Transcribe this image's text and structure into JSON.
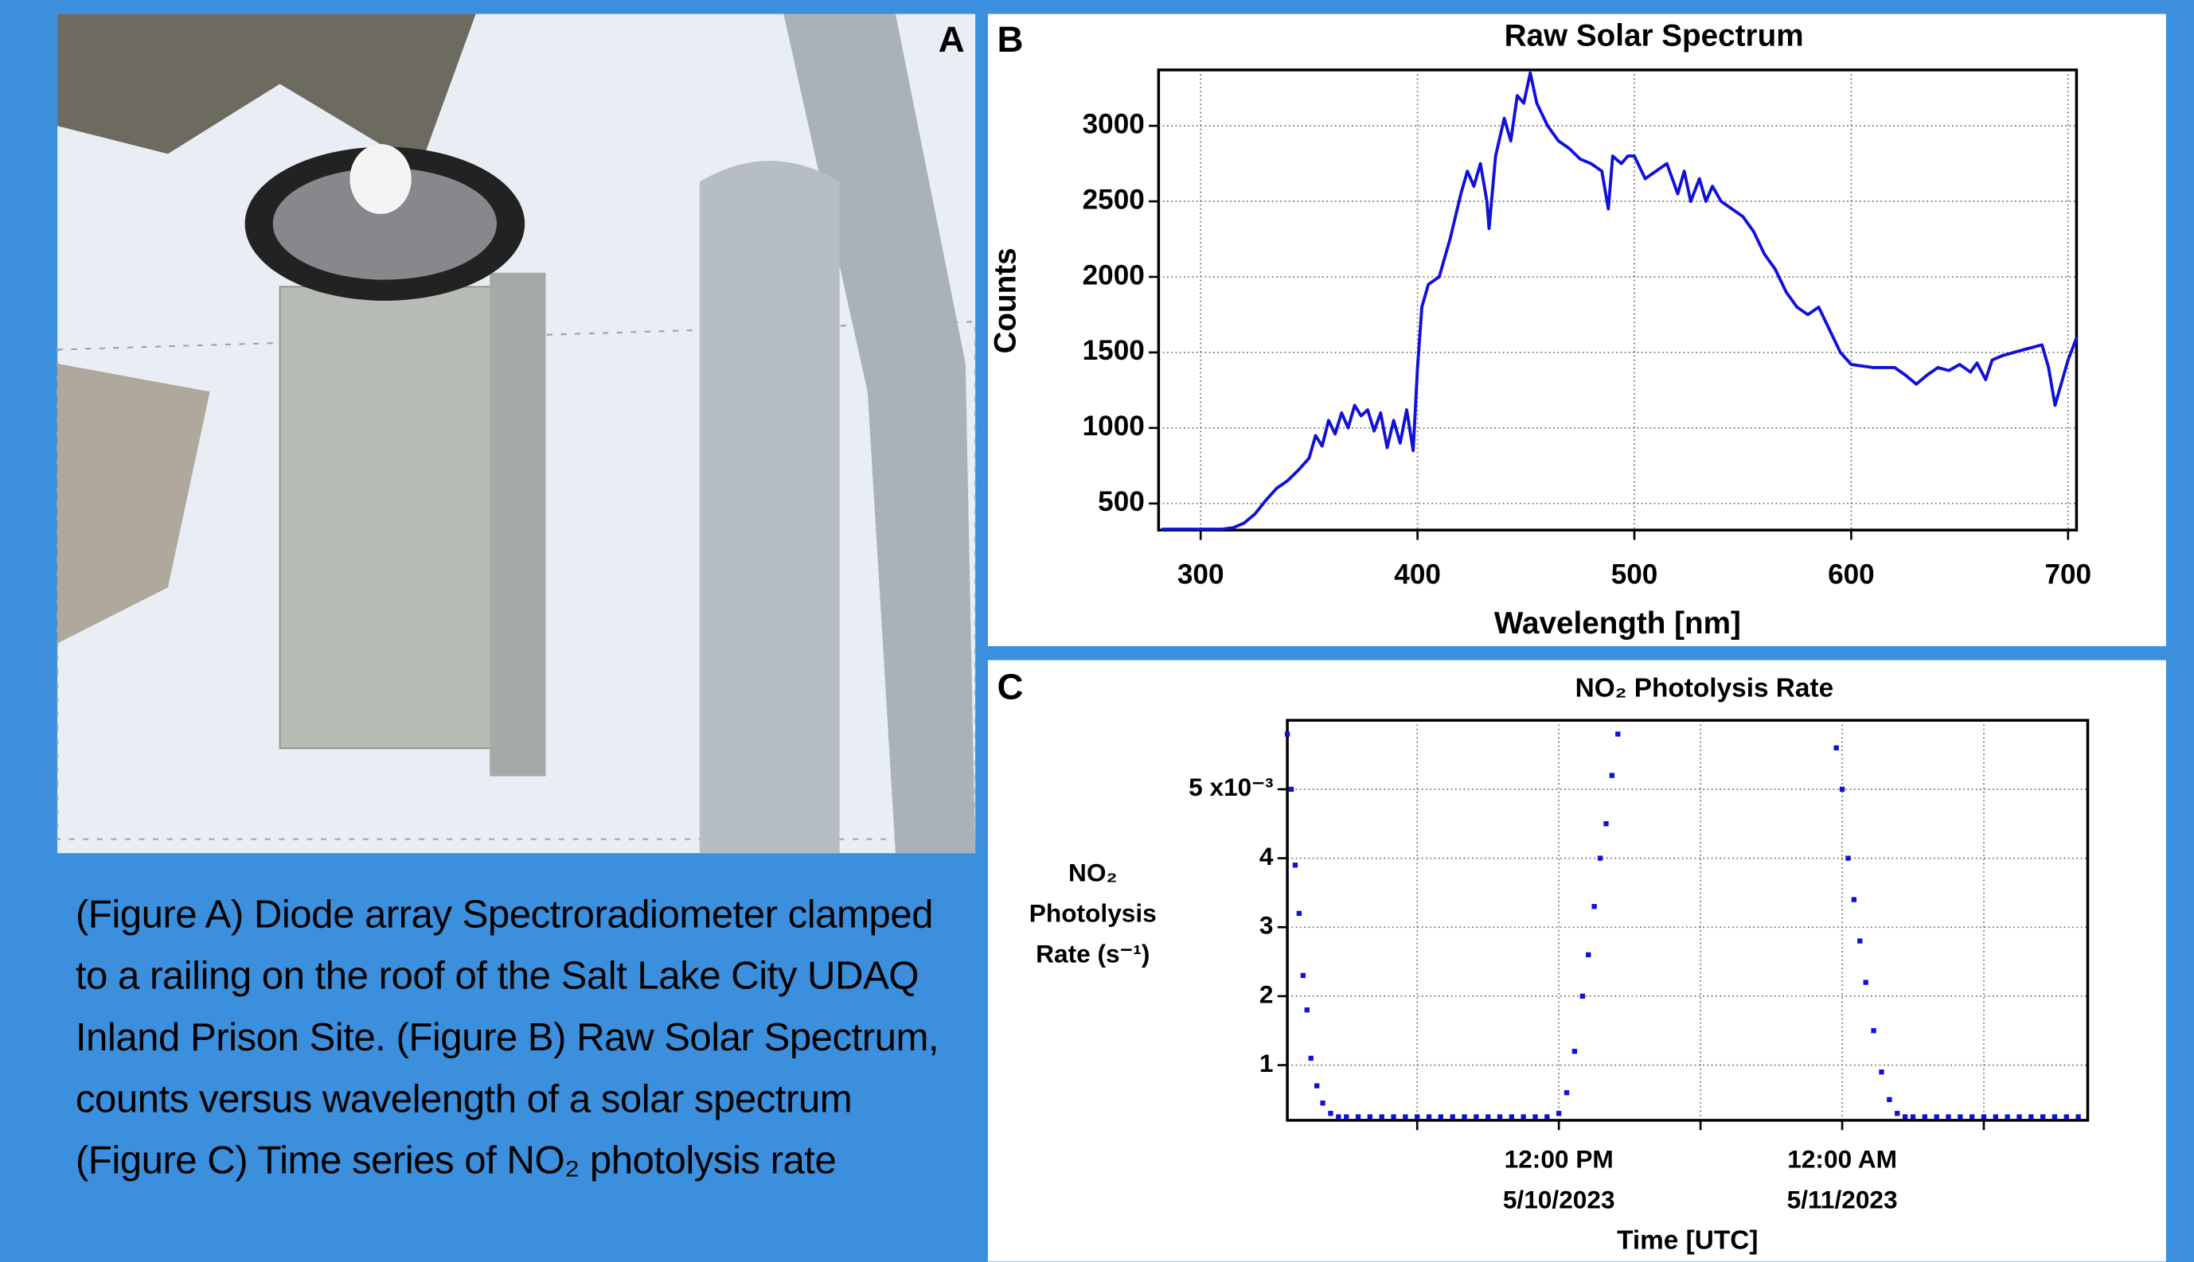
{
  "panel_labels": [
    "A",
    "B",
    "C"
  ],
  "caption": "(Figure A) Diode array Spectroradiometer clamped to a railing on the roof of the Salt Lake City UDAQ Inland Prison Site. (Figure B) Raw Solar Spectrum, counts versus wavelength of a solar spectrum (Figure C) Time series of NO₂ photolysis rate",
  "chart_data": [
    {
      "type": "line",
      "title": "Raw Solar Spectrum",
      "x_label": "Wavelength [nm]",
      "y_label": "Counts",
      "color": "#1010d8",
      "grid": true,
      "xlim": [
        280.6,
        703.9
      ],
      "ylim": [
        324,
        3370
      ],
      "xticks": [
        300,
        400,
        500,
        600,
        700
      ],
      "yticks": [
        500,
        1000,
        1500,
        2000,
        2500,
        3000
      ],
      "x": [
        282,
        290,
        300,
        310,
        315,
        320,
        325,
        330,
        335,
        340,
        345,
        350,
        353,
        356,
        359,
        362,
        365,
        368,
        371,
        374,
        377,
        380,
        383,
        386,
        389,
        392,
        395,
        398,
        400,
        402,
        405,
        410,
        415,
        420,
        423,
        426,
        429,
        432,
        433,
        436,
        440,
        443,
        446,
        449,
        452,
        455,
        460,
        465,
        470,
        475,
        480,
        485,
        488,
        490,
        494,
        497,
        500,
        505,
        510,
        515,
        520,
        523,
        526,
        530,
        533,
        536,
        540,
        545,
        550,
        555,
        560,
        565,
        570,
        575,
        580,
        585,
        590,
        595,
        600,
        610,
        620,
        625,
        630,
        635,
        640,
        645,
        650,
        655,
        658,
        662,
        665,
        670,
        680,
        688,
        691,
        694,
        697,
        700,
        704
      ],
      "values": [
        330,
        330,
        330,
        330,
        340,
        370,
        430,
        520,
        600,
        650,
        720,
        800,
        950,
        880,
        1050,
        960,
        1100,
        1000,
        1150,
        1080,
        1120,
        980,
        1100,
        870,
        1050,
        900,
        1120,
        850,
        1400,
        1800,
        1950,
        2000,
        2250,
        2550,
        2700,
        2600,
        2750,
        2500,
        2320,
        2800,
        3050,
        2900,
        3200,
        3150,
        3350,
        3150,
        3000,
        2900,
        2850,
        2780,
        2750,
        2700,
        2450,
        2800,
        2750,
        2800,
        2800,
        2650,
        2700,
        2750,
        2550,
        2700,
        2500,
        2650,
        2500,
        2600,
        2500,
        2450,
        2400,
        2300,
        2150,
        2050,
        1900,
        1800,
        1750,
        1800,
        1650,
        1500,
        1420,
        1400,
        1400,
        1350,
        1290,
        1350,
        1400,
        1380,
        1420,
        1370,
        1430,
        1320,
        1450,
        1480,
        1520,
        1550,
        1400,
        1150,
        1300,
        1450,
        1600
      ]
    },
    {
      "type": "scatter",
      "title": "NO₂ Photolysis Rate",
      "x_label": "Time [UTC]",
      "y_label": "NO₂\nPhotolysis\nRate (s⁻¹)",
      "color": "#1010d8",
      "grid": true,
      "xlim": [
        "2023-05-10T00:30",
        "2023-05-11T10:24"
      ],
      "ylim": [
        0.2,
        6.0
      ],
      "xticks": [
        {
          "value": "2023-05-10T06:00",
          "label": null
        },
        {
          "value": "2023-05-10T12:00",
          "label": "12:00 PM\n5/10/2023"
        },
        {
          "value": "2023-05-10T18:00",
          "label": null
        },
        {
          "value": "2023-05-11T00:00",
          "label": "12:00 AM\n5/11/2023"
        },
        {
          "value": "2023-05-11T06:00",
          "label": null
        }
      ],
      "yticks": [
        1,
        2,
        3,
        4,
        {
          "value": 5,
          "label": "5 x10⁻³"
        }
      ],
      "x": [
        "2023-05-10T00:30",
        "2023-05-10T00:40",
        "2023-05-10T00:50",
        "2023-05-10T01:00",
        "2023-05-10T01:10",
        "2023-05-10T01:20",
        "2023-05-10T01:30",
        "2023-05-10T01:45",
        "2023-05-10T02:00",
        "2023-05-10T02:20",
        "2023-05-10T02:40",
        "2023-05-10T03:00",
        "2023-05-10T03:30",
        "2023-05-10T04:00",
        "2023-05-10T04:30",
        "2023-05-10T05:00",
        "2023-05-10T05:30",
        "2023-05-10T06:00",
        "2023-05-10T06:30",
        "2023-05-10T07:00",
        "2023-05-10T07:30",
        "2023-05-10T08:00",
        "2023-05-10T08:30",
        "2023-05-10T09:00",
        "2023-05-10T09:30",
        "2023-05-10T10:00",
        "2023-05-10T10:30",
        "2023-05-10T11:00",
        "2023-05-10T11:30",
        "2023-05-10T12:00",
        "2023-05-10T12:20",
        "2023-05-10T12:40",
        "2023-05-10T13:00",
        "2023-05-10T13:15",
        "2023-05-10T13:30",
        "2023-05-10T13:45",
        "2023-05-10T14:00",
        "2023-05-10T14:15",
        "2023-05-10T14:30",
        "2023-05-10T23:45",
        "2023-05-11T00:00",
        "2023-05-11T00:15",
        "2023-05-11T00:30",
        "2023-05-11T00:45",
        "2023-05-11T01:00",
        "2023-05-11T01:20",
        "2023-05-11T01:40",
        "2023-05-11T02:00",
        "2023-05-11T02:20",
        "2023-05-11T02:40",
        "2023-05-11T03:00",
        "2023-05-11T03:30",
        "2023-05-11T04:00",
        "2023-05-11T04:30",
        "2023-05-11T05:00",
        "2023-05-11T05:30",
        "2023-05-11T06:00",
        "2023-05-11T06:30",
        "2023-05-11T07:00",
        "2023-05-11T07:30",
        "2023-05-11T08:00",
        "2023-05-11T08:30",
        "2023-05-11T09:00",
        "2023-05-11T09:30",
        "2023-05-11T10:00"
      ],
      "values": [
        5.8,
        5.0,
        3.9,
        3.2,
        2.3,
        1.8,
        1.1,
        0.7,
        0.45,
        0.3,
        0.25,
        0.25,
        0.25,
        0.25,
        0.25,
        0.25,
        0.25,
        0.25,
        0.25,
        0.25,
        0.25,
        0.25,
        0.25,
        0.25,
        0.25,
        0.25,
        0.25,
        0.25,
        0.25,
        0.3,
        0.6,
        1.2,
        2.0,
        2.6,
        3.3,
        4.0,
        4.5,
        5.2,
        5.8,
        5.6,
        5.0,
        4.0,
        3.4,
        2.8,
        2.2,
        1.5,
        0.9,
        0.5,
        0.3,
        0.25,
        0.25,
        0.25,
        0.25,
        0.25,
        0.25,
        0.25,
        0.25,
        0.25,
        0.25,
        0.25,
        0.25,
        0.25,
        0.25,
        0.25,
        0.25
      ]
    }
  ]
}
